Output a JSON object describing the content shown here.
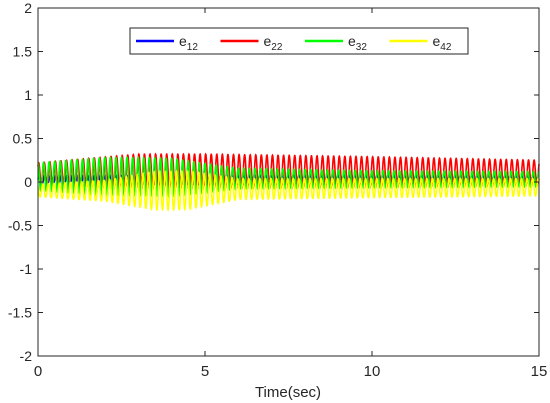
{
  "chart_data": {
    "type": "line",
    "xlabel": "Time(sec)",
    "ylabel": "",
    "xlim": [
      0,
      15
    ],
    "ylim": [
      -2,
      2
    ],
    "x_ticks": [
      0,
      5,
      10,
      15
    ],
    "y_ticks": [
      -2,
      -1.5,
      -1,
      -0.5,
      0,
      0.5,
      1,
      1.5,
      2
    ],
    "x_tick_labels": [
      "0",
      "5",
      "10",
      "15"
    ],
    "y_tick_labels": [
      "-2",
      "-1.5",
      "-1",
      "-0.5",
      "0",
      "0.5",
      "1",
      "1.5",
      "2"
    ],
    "grid": false,
    "legend_position": "top-center",
    "series": [
      {
        "name": "e12",
        "label_base": "e",
        "label_sub": "12",
        "color": "#0000ff",
        "oscillation_frequency_hz": 6,
        "center": [
          [
            0,
            0.03
          ],
          [
            5,
            0.03
          ],
          [
            10,
            0.04
          ],
          [
            15,
            0.04
          ]
        ],
        "amplitude": [
          [
            0,
            0.05
          ],
          [
            5,
            0.06
          ],
          [
            10,
            0.06
          ],
          [
            15,
            0.05
          ]
        ]
      },
      {
        "name": "e22",
        "label_base": "e",
        "label_sub": "22",
        "color": "#ff0000",
        "oscillation_frequency_hz": 6,
        "center": [
          [
            0,
            0.08
          ],
          [
            3,
            0.12
          ],
          [
            5,
            0.12
          ],
          [
            10,
            0.11
          ],
          [
            15,
            0.1
          ]
        ],
        "amplitude": [
          [
            0,
            0.14
          ],
          [
            3,
            0.2
          ],
          [
            5,
            0.2
          ],
          [
            10,
            0.18
          ],
          [
            15,
            0.15
          ]
        ]
      },
      {
        "name": "e32",
        "label_base": "e",
        "label_sub": "32",
        "color": "#00ff00",
        "oscillation_frequency_hz": 6,
        "center": [
          [
            0,
            0.06
          ],
          [
            3,
            0.06
          ],
          [
            5,
            0.04
          ],
          [
            10,
            0.03
          ],
          [
            15,
            0.03
          ]
        ],
        "amplitude": [
          [
            0,
            0.16
          ],
          [
            2,
            0.22
          ],
          [
            4,
            0.22
          ],
          [
            6,
            0.12
          ],
          [
            10,
            0.1
          ],
          [
            15,
            0.09
          ]
        ]
      },
      {
        "name": "e42",
        "label_base": "e",
        "label_sub": "42",
        "color": "#ffff00",
        "oscillation_frequency_hz": 6,
        "center": [
          [
            0,
            -0.1
          ],
          [
            3,
            -0.1
          ],
          [
            4,
            -0.1
          ],
          [
            6,
            -0.08
          ],
          [
            10,
            -0.07
          ],
          [
            15,
            -0.06
          ]
        ],
        "amplitude": [
          [
            0,
            0.07
          ],
          [
            2,
            0.12
          ],
          [
            3.5,
            0.22
          ],
          [
            4.5,
            0.22
          ],
          [
            6,
            0.12
          ],
          [
            10,
            0.11
          ],
          [
            15,
            0.1
          ]
        ]
      }
    ]
  }
}
